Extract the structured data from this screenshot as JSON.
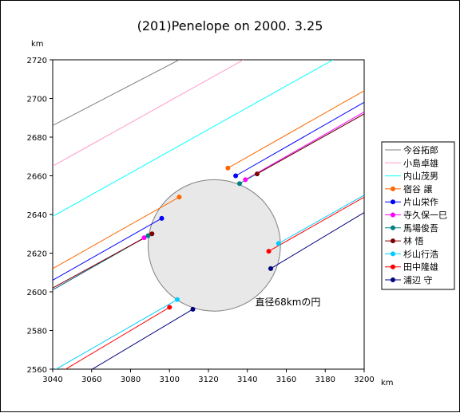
{
  "chart_data": {
    "type": "line",
    "title": "(201)Penelope on 2000. 3.25",
    "xlabel": "km",
    "ylabel": "km",
    "xlim": [
      3040,
      3200
    ],
    "ylim": [
      2560,
      2720
    ],
    "xticks": [
      3040,
      3060,
      3080,
      3100,
      3120,
      3140,
      3160,
      3180,
      3200
    ],
    "yticks": [
      2560,
      2580,
      2600,
      2620,
      2640,
      2660,
      2680,
      2700,
      2720
    ],
    "grid": false,
    "legend_position": "right",
    "circle": {
      "center": [
        3123,
        2624
      ],
      "diameter_km": 68,
      "label": "直径68kmの円",
      "label_pos": [
        3144,
        2593
      ]
    },
    "series": [
      {
        "name": "今谷拓郎",
        "color": "#808080",
        "lines": [
          [
            [
              3040,
              2686
            ],
            [
              3105,
              2720
            ]
          ]
        ],
        "points": []
      },
      {
        "name": "小島卓雄",
        "color": "#ff99cc",
        "lines": [
          [
            [
              3040,
              2665
            ],
            [
              3138,
              2720
            ]
          ]
        ],
        "points": []
      },
      {
        "name": "内山茂男",
        "color": "#00ffff",
        "lines": [
          [
            [
              3040,
              2639
            ],
            [
              3184,
              2720
            ]
          ]
        ],
        "points": []
      },
      {
        "name": "宿谷 譲",
        "color": "#ff6600",
        "lines": [
          [
            [
              3040,
              2612
            ],
            [
              3105,
              2649
            ]
          ],
          [
            [
              3130,
              2664
            ],
            [
              3200,
              2704
            ]
          ]
        ],
        "points": [
          [
            3105,
            2649
          ],
          [
            3130,
            2664
          ]
        ]
      },
      {
        "name": "片山栄作",
        "color": "#0000ff",
        "lines": [
          [
            [
              3040,
              2606
            ],
            [
              3096,
              2638
            ]
          ],
          [
            [
              3134,
              2660
            ],
            [
              3200,
              2698
            ]
          ]
        ],
        "points": [
          [
            3096,
            2638
          ],
          [
            3134,
            2660
          ]
        ]
      },
      {
        "name": "寺久保一巳",
        "color": "#ff00ff",
        "lines": [
          [
            [
              3040,
              2601
            ],
            [
              3087,
              2628
            ]
          ],
          [
            [
              3139,
              2658
            ],
            [
              3200,
              2693
            ]
          ]
        ],
        "points": [
          [
            3087,
            2628
          ],
          [
            3139,
            2658
          ]
        ]
      },
      {
        "name": "馬場俊吾",
        "color": "#008080",
        "lines": [
          [
            [
              3040,
              2601
            ],
            [
              3089,
              2629
            ]
          ],
          [
            [
              3136,
              2656
            ],
            [
              3200,
              2692
            ]
          ]
        ],
        "points": [
          [
            3089,
            2629
          ],
          [
            3136,
            2656
          ]
        ]
      },
      {
        "name": "林 悟",
        "color": "#800000",
        "lines": [
          [
            [
              3040,
              2602
            ],
            [
              3091,
              2630
            ]
          ],
          [
            [
              3145,
              2661
            ],
            [
              3200,
              2692
            ]
          ]
        ],
        "points": [
          [
            3091,
            2630
          ],
          [
            3145,
            2661
          ]
        ]
      },
      {
        "name": "杉山行浩",
        "color": "#00ccff",
        "lines": [
          [
            [
              3040,
              2559
            ],
            [
              3104,
              2596
            ]
          ],
          [
            [
              3156,
              2625
            ],
            [
              3200,
              2650
            ]
          ]
        ],
        "points": [
          [
            3104,
            2596
          ],
          [
            3156,
            2625
          ]
        ]
      },
      {
        "name": "田中隆雄",
        "color": "#ff0000",
        "lines": [
          [
            [
              3040,
              2556
            ],
            [
              3100,
              2592
            ]
          ],
          [
            [
              3151,
              2621
            ],
            [
              3200,
              2649
            ]
          ]
        ],
        "points": [
          [
            3100,
            2592
          ],
          [
            3151,
            2621
          ]
        ]
      },
      {
        "name": "浦辺 守",
        "color": "#000080",
        "lines": [
          [
            [
              3057,
              2558
            ],
            [
              3112,
              2591
            ]
          ],
          [
            [
              3152,
              2612
            ],
            [
              3200,
              2641
            ]
          ]
        ],
        "points": [
          [
            3112,
            2591
          ],
          [
            3152,
            2612
          ]
        ]
      }
    ]
  }
}
